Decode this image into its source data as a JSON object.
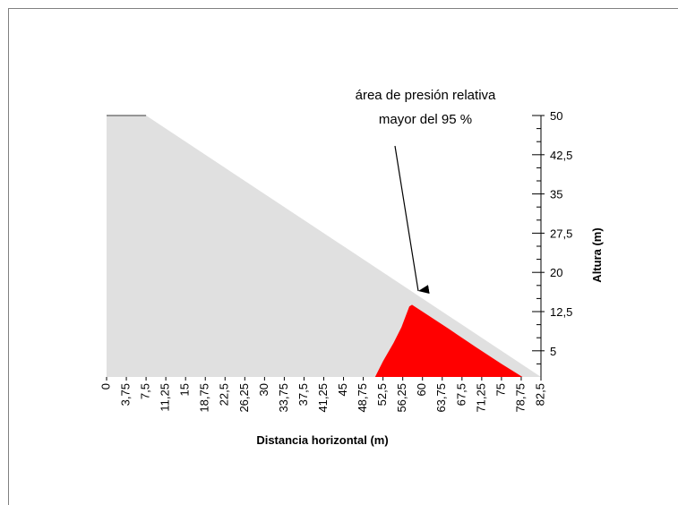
{
  "chart_data": {
    "type": "area",
    "title": "",
    "xlabel": "Distancia horizontal (m)",
    "ylabel": "Altura (m)",
    "xlim": [
      0,
      82.5
    ],
    "ylim": [
      0,
      50
    ],
    "x_ticks": [
      "0",
      "3,75",
      "7,5",
      "11,25",
      "15",
      "18,75",
      "22,5",
      "26,25",
      "30",
      "33,75",
      "37,5",
      "41,25",
      "45",
      "48,75",
      "52,5",
      "56,25",
      "60",
      "63,75",
      "67,5",
      "71,25",
      "75",
      "78,75",
      "82,5"
    ],
    "y_ticks": [
      "50",
      "42,5",
      "35",
      "27,5",
      "20",
      "12,5",
      "5"
    ],
    "y_tick_values": [
      50,
      42.5,
      35,
      27.5,
      20,
      12.5,
      5
    ],
    "series": [
      {
        "color": "#e0e0e0",
        "points": [
          [
            0,
            0
          ],
          [
            0,
            50
          ],
          [
            7.5,
            50
          ],
          [
            82.5,
            0
          ]
        ]
      },
      {
        "color": "#ff0000",
        "points": [
          [
            51,
            0
          ],
          [
            52.5,
            3
          ],
          [
            54.5,
            6.5
          ],
          [
            56,
            9.5
          ],
          [
            57.5,
            13.5
          ],
          [
            58,
            13.8
          ],
          [
            60,
            12.5
          ],
          [
            65,
            9.2
          ],
          [
            70,
            5.8
          ],
          [
            75,
            2.5
          ],
          [
            79,
            0
          ]
        ]
      }
    ],
    "annotation": {
      "lines": [
        "área de presión relativa",
        "mayor del 95 %"
      ],
      "arrow_target": [
        58,
        16
      ]
    },
    "grid": false
  }
}
